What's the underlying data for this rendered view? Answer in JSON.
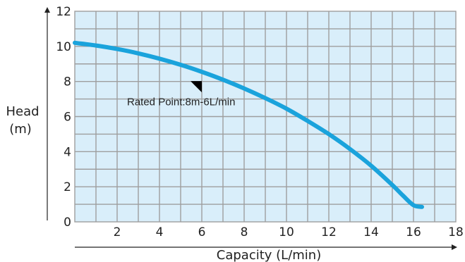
{
  "chart_data": {
    "type": "line",
    "title": "",
    "xlabel": "Capacity (L/min)",
    "ylabel_lines": [
      "Head",
      "(m)"
    ],
    "xlim": [
      0,
      18
    ],
    "ylim": [
      0,
      12
    ],
    "x_ticks": [
      2,
      4,
      6,
      8,
      10,
      12,
      14,
      16,
      18
    ],
    "y_ticks": [
      0,
      2,
      4,
      6,
      8,
      10,
      12
    ],
    "grid": true,
    "series": [
      {
        "x": [
          0,
          1,
          2,
          3,
          4,
          5,
          6,
          7,
          8,
          9,
          10,
          11,
          12,
          13,
          14,
          15,
          15.5,
          16,
          16.4
        ],
        "y": [
          10.2,
          10.05,
          9.85,
          9.6,
          9.3,
          8.95,
          8.55,
          8.1,
          7.6,
          7.05,
          6.45,
          5.75,
          5.0,
          4.15,
          3.2,
          2.1,
          1.5,
          0.95,
          0.85
        ]
      }
    ],
    "annotations": [
      {
        "text": "Rated Point:8m-6L/min",
        "x": 6,
        "y": 8
      }
    ],
    "colors": {
      "plot_background": "#d9eefa",
      "grid": "#9e9e9e",
      "curve": "#1aa3dc",
      "marker": "#000000"
    }
  }
}
